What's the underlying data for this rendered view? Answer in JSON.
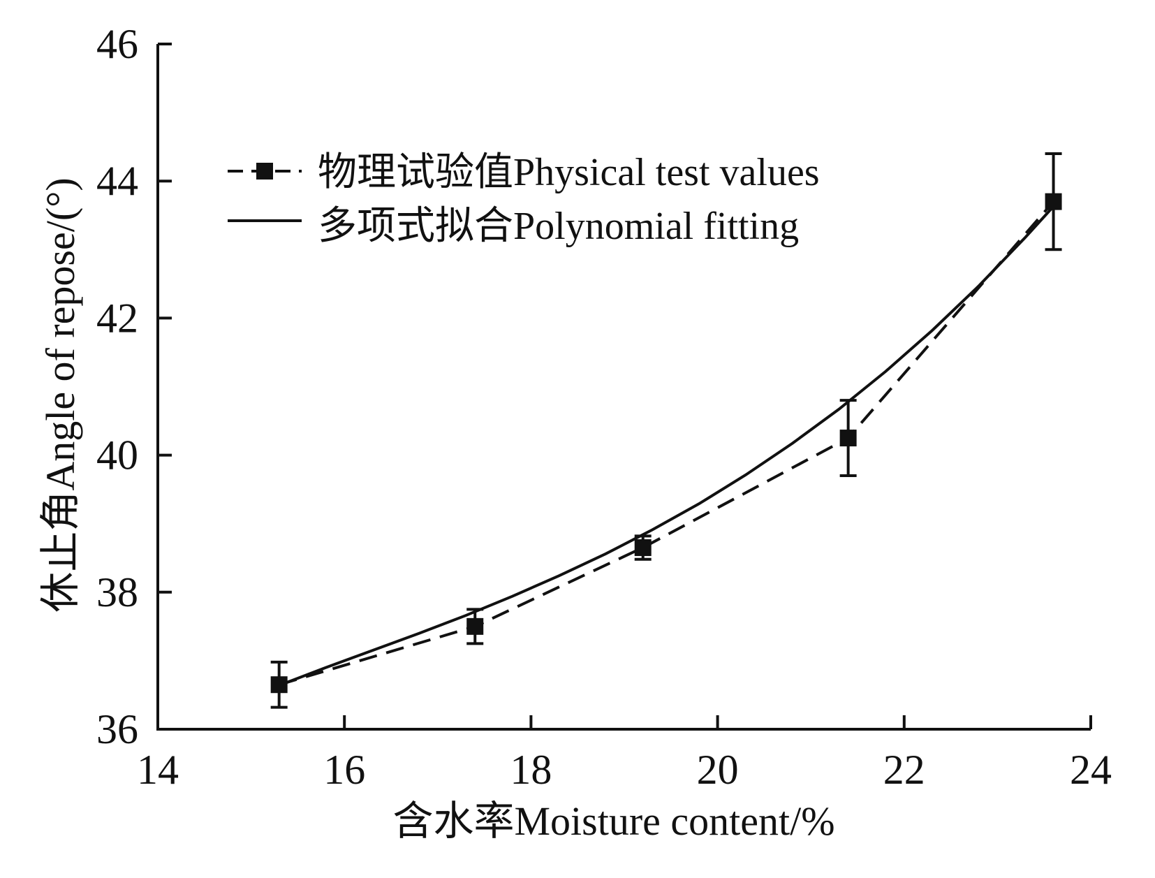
{
  "chart_data": {
    "type": "line",
    "xlabel": "含水率Moisture content/%",
    "ylabel": "休止角Angle of repose/(°)",
    "xlim": [
      14,
      24
    ],
    "ylim": [
      36,
      46
    ],
    "xticks": [
      14,
      16,
      18,
      20,
      22,
      24
    ],
    "yticks": [
      36,
      38,
      40,
      42,
      44,
      46
    ],
    "grid": false,
    "legend_position": "top-left",
    "series": [
      {
        "name": "物理试验值Physical test values",
        "style": "dashed-square-markers",
        "color": "#111111",
        "x": [
          15.3,
          17.4,
          19.2,
          21.4,
          23.6
        ],
        "y": [
          36.65,
          37.5,
          38.65,
          40.25,
          43.7
        ],
        "error": [
          0.33,
          0.25,
          0.17,
          0.55,
          0.7
        ]
      },
      {
        "name": "多项式拟合Polynomial fitting",
        "style": "solid",
        "color": "#111111",
        "x": [
          15.3,
          15.8,
          16.3,
          16.8,
          17.3,
          17.8,
          18.3,
          18.8,
          19.3,
          19.8,
          20.3,
          20.8,
          21.3,
          21.8,
          22.3,
          22.8,
          23.3,
          23.6
        ],
        "y": [
          36.64,
          36.9,
          37.15,
          37.4,
          37.66,
          37.94,
          38.24,
          38.56,
          38.91,
          39.29,
          39.71,
          40.17,
          40.67,
          41.22,
          41.82,
          42.47,
          43.18,
          43.63
        ]
      }
    ]
  }
}
